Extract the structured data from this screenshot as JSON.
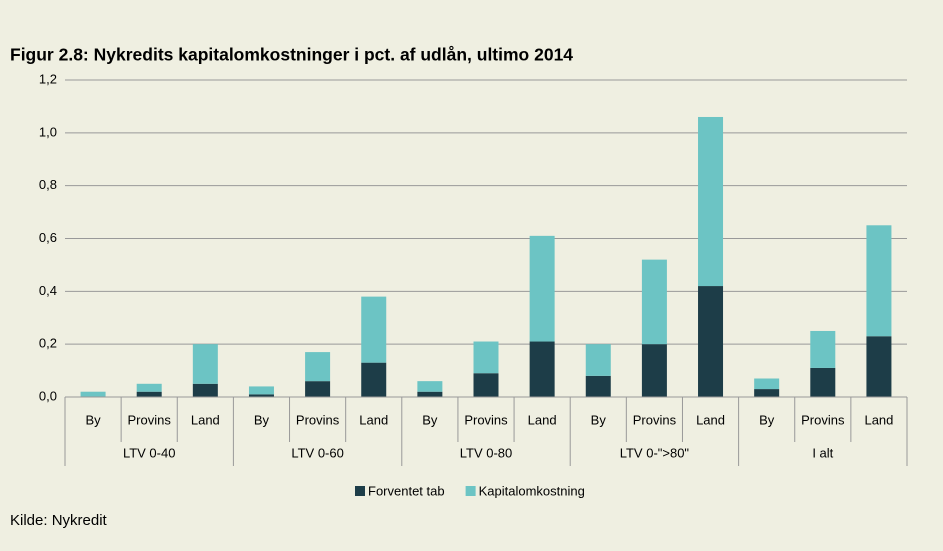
{
  "chart_data": {
    "type": "stacked_bar",
    "title": "Figur 2.8: Nykredits kapitalomkostninger i pct. af udlån, ultimo 2014",
    "categories": [
      "By",
      "Provins",
      "Land",
      "By",
      "Provins",
      "Land",
      "By",
      "Provins",
      "Land",
      "By",
      "Provins",
      "Land",
      "By",
      "Provins",
      "Land"
    ],
    "groups": [
      "LTV 0-40",
      "LTV 0-60",
      "LTV 0-80",
      "LTV 0-\">80\"",
      "I alt"
    ],
    "series": [
      {
        "name": "Forventet tab",
        "color": "#1d3d48",
        "values": [
          0.0,
          0.02,
          0.05,
          0.01,
          0.06,
          0.13,
          0.02,
          0.09,
          0.21,
          0.08,
          0.2,
          0.42,
          0.03,
          0.11,
          0.23
        ]
      },
      {
        "name": "Kapitalomkostning",
        "color": "#6cc4c4",
        "values": [
          0.02,
          0.03,
          0.15,
          0.03,
          0.11,
          0.25,
          0.04,
          0.12,
          0.4,
          0.12,
          0.32,
          0.64,
          0.04,
          0.14,
          0.42
        ]
      }
    ],
    "ylim": [
      0,
      1.2
    ],
    "yticks": [
      {
        "value": 0,
        "label": "0,0"
      },
      {
        "value": 0.2,
        "label": "0,2"
      },
      {
        "value": 0.4,
        "label": "0,4"
      },
      {
        "value": 0.6,
        "label": "0,6"
      },
      {
        "value": 0.8,
        "label": "0,8"
      },
      {
        "value": 1.0,
        "label": "1,0"
      },
      {
        "value": 1.2,
        "label": "1,2"
      }
    ],
    "grid": true,
    "legend": "bottom",
    "source": "Kilde: Nykredit"
  }
}
